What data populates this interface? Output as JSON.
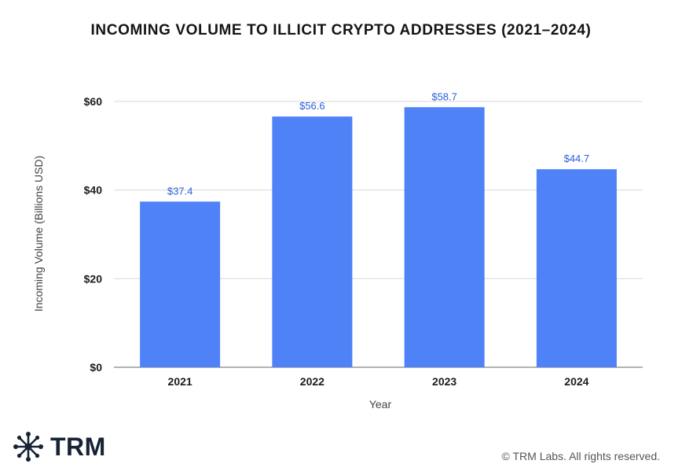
{
  "chart_data": {
    "type": "bar",
    "title": "INCOMING VOLUME TO ILLICIT CRYPTO ADDRESSES (2021–2024)",
    "xlabel": "Year",
    "ylabel": "Incoming Volume (Billions USD)",
    "categories": [
      "2021",
      "2022",
      "2023",
      "2024"
    ],
    "values": [
      37.4,
      56.6,
      58.7,
      44.7
    ],
    "value_labels": [
      "$37.4",
      "$56.6",
      "$58.7",
      "$44.7"
    ],
    "yticks": [
      0,
      20,
      40,
      60
    ],
    "ytick_labels": [
      "$0",
      "$20",
      "$40",
      "$60"
    ],
    "ylim": [
      0,
      60
    ],
    "grid": true,
    "colors": {
      "bar": "#4f81f7",
      "label": "#2b5fd9",
      "grid": "#d9d9d9",
      "axis": "#9a9a9a"
    }
  },
  "brand": {
    "logo_text": "TRM",
    "logo_icon": "network-nodes-icon"
  },
  "footer": {
    "copyright": "© TRM Labs. All rights reserved."
  }
}
